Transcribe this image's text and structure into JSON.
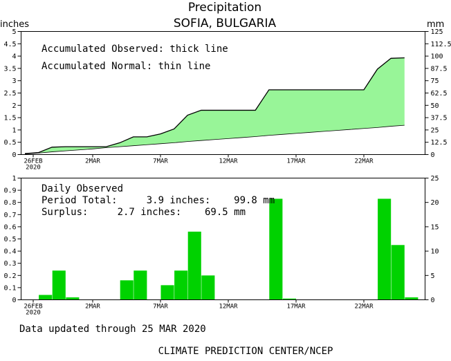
{
  "title": "Precipitation",
  "subtitle": "SOFIA, BULGARIA",
  "footer_updated": "Data updated through 25 MAR 2020",
  "footer_credit": "CLIMATE PREDICTION CENTER/NCEP",
  "colors": {
    "fill": "#98f598",
    "bar": "#00d200",
    "line": "#000000"
  },
  "chart_data": [
    {
      "type": "area",
      "ylabel_left": "inches",
      "ylabel_right": "mm",
      "annotations": [
        "Accumulated Observed: thick line",
        "Accumulated Normal: thin line"
      ],
      "x_tick_labels": [
        "26FEB",
        "2MAR",
        "7MAR",
        "12MAR",
        "17MAR",
        "22MAR"
      ],
      "x_year": "2020",
      "ylim_left": [
        0,
        5
      ],
      "ylim_right": [
        0,
        125
      ],
      "yticks_left": [
        "0",
        "0.5",
        "1",
        "1.5",
        "2",
        "2.5",
        "3",
        "3.5",
        "4",
        "4.5",
        "5"
      ],
      "yticks_right": [
        "0",
        "12.5",
        "25",
        "37.5",
        "50",
        "62.5",
        "75",
        "87.5",
        "100",
        "112.5",
        "125"
      ],
      "dates": [
        "26FEB",
        "27FEB",
        "28FEB",
        "29FEB",
        "1MAR",
        "2MAR",
        "3MAR",
        "4MAR",
        "5MAR",
        "6MAR",
        "7MAR",
        "8MAR",
        "9MAR",
        "10MAR",
        "11MAR",
        "12MAR",
        "13MAR",
        "14MAR",
        "15MAR",
        "16MAR",
        "17MAR",
        "18MAR",
        "19MAR",
        "20MAR",
        "21MAR",
        "22MAR",
        "23MAR",
        "24MAR",
        "25MAR"
      ],
      "series": [
        {
          "name": "Accumulated Observed",
          "values": [
            0.04,
            0.08,
            0.3,
            0.32,
            0.32,
            0.32,
            0.32,
            0.48,
            0.72,
            0.72,
            0.84,
            1.04,
            1.6,
            1.8,
            1.8,
            1.8,
            1.8,
            1.8,
            2.63,
            2.63,
            2.63,
            2.63,
            2.63,
            2.63,
            2.63,
            2.63,
            3.47,
            3.91,
            3.93
          ]
        },
        {
          "name": "Accumulated Normal",
          "values": [
            0.02,
            0.06,
            0.11,
            0.15,
            0.19,
            0.23,
            0.28,
            0.32,
            0.36,
            0.4,
            0.44,
            0.48,
            0.53,
            0.57,
            0.61,
            0.65,
            0.69,
            0.73,
            0.78,
            0.82,
            0.86,
            0.9,
            0.94,
            0.98,
            1.02,
            1.06,
            1.1,
            1.15,
            1.19
          ]
        }
      ]
    },
    {
      "type": "bar",
      "annotations": [
        "Daily Observed",
        "Period Total:     3.9 inches:    99.8 mm",
        "Surplus:     2.7 inches:    69.5 mm"
      ],
      "x_tick_labels": [
        "26FEB",
        "2MAR",
        "7MAR",
        "12MAR",
        "17MAR",
        "22MAR"
      ],
      "x_year": "2020",
      "ylim_left": [
        0,
        1
      ],
      "ylim_right": [
        0,
        25
      ],
      "yticks_left": [
        "0",
        "0.1",
        "0.2",
        "0.3",
        "0.4",
        "0.5",
        "0.6",
        "0.7",
        "0.8",
        "0.9",
        "1"
      ],
      "yticks_right": [
        "0",
        "5",
        "10",
        "15",
        "20",
        "25"
      ],
      "dates": [
        "26FEB",
        "27FEB",
        "28FEB",
        "29FEB",
        "1MAR",
        "2MAR",
        "3MAR",
        "4MAR",
        "5MAR",
        "6MAR",
        "7MAR",
        "8MAR",
        "9MAR",
        "10MAR",
        "11MAR",
        "12MAR",
        "13MAR",
        "14MAR",
        "15MAR",
        "16MAR",
        "17MAR",
        "18MAR",
        "19MAR",
        "20MAR",
        "21MAR",
        "22MAR",
        "23MAR",
        "24MAR",
        "25MAR"
      ],
      "values": [
        0,
        0.04,
        0.24,
        0.02,
        0,
        0,
        0,
        0.16,
        0.24,
        0,
        0.12,
        0.24,
        0.56,
        0.2,
        0,
        0,
        0,
        0,
        0.83,
        0.01,
        0,
        0,
        0,
        0,
        0,
        0,
        0.83,
        0.45,
        0.02
      ]
    }
  ]
}
